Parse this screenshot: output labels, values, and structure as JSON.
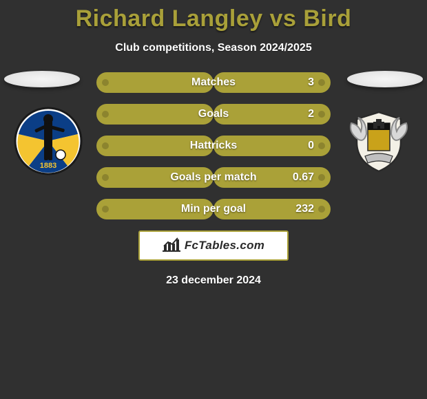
{
  "colors": {
    "background": "#303030",
    "title": "#a9a039",
    "bar_left_fill": "#aaa138",
    "bar_left_dot": "#8c842e",
    "bar_right_fill": "#aaa138",
    "bar_right_dot": "#8c842e",
    "label_text": "#ffffff",
    "value_text": "#ffffff",
    "brand_border": "#aaa138",
    "brand_text": "#2a2a2a",
    "brand_icon": "#2a2a2a"
  },
  "title": {
    "left_name": "Richard Langley",
    "vs": " vs ",
    "right_name": "Bird",
    "fontsize": 34
  },
  "subtitle": {
    "text": "Club competitions, Season 2024/2025",
    "fontsize": 16
  },
  "stats": {
    "label_fontsize": 16,
    "value_fontsize": 16,
    "bar_width_total": 340,
    "rows": [
      {
        "label": "Matches",
        "right_value": "3",
        "left_pct": 50,
        "right_pct": 50
      },
      {
        "label": "Goals",
        "right_value": "2",
        "left_pct": 50,
        "right_pct": 50
      },
      {
        "label": "Hattricks",
        "right_value": "0",
        "left_pct": 50,
        "right_pct": 50
      },
      {
        "label": "Goals per match",
        "right_value": "0.67",
        "left_pct": 50,
        "right_pct": 50
      },
      {
        "label": "Min per goal",
        "right_value": "232",
        "left_pct": 50,
        "right_pct": 50
      }
    ]
  },
  "brand": {
    "text": "FcTables.com",
    "fontsize": 17
  },
  "date": {
    "text": "23 december 2024",
    "fontsize": 16
  }
}
